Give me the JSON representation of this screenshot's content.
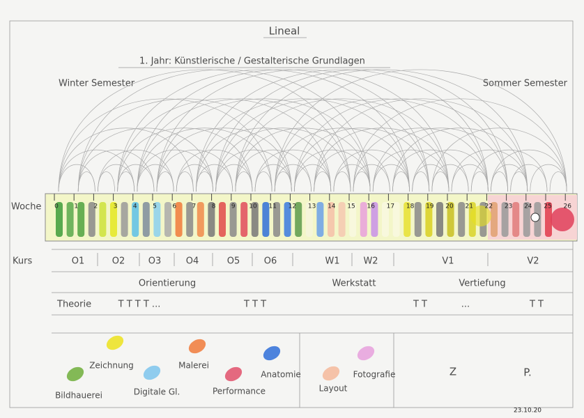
{
  "header": {
    "title": "Lineal",
    "subtitle": "1. Jahr: Künstlerische / Gestalterische Grundlagen",
    "left": "Winter Semester",
    "right": "Sommer Semester"
  },
  "ruler": {
    "label": "Woche",
    "weeks": [
      0,
      1,
      2,
      3,
      4,
      5,
      6,
      7,
      8,
      9,
      10,
      11,
      12,
      13,
      14,
      15,
      16,
      17,
      18,
      19,
      20,
      21,
      22,
      23,
      24,
      25,
      26
    ]
  },
  "courses": {
    "label": "Kurs",
    "items": [
      "O1",
      "O2",
      "O3",
      "O4",
      "O5",
      "O6",
      "W1",
      "W2",
      "V1",
      "V2"
    ]
  },
  "phases": [
    "Orientierung",
    "Werkstatt",
    "Vertiefung"
  ],
  "theory": {
    "label": "Theorie",
    "marks": [
      "T   T   T   T   ...",
      "T   T   T",
      "T   T",
      "...",
      "T   T"
    ]
  },
  "legend": [
    {
      "label": "Zeichnung",
      "color": "#ece21c"
    },
    {
      "label": "Malerei",
      "color": "#f07a3a"
    },
    {
      "label": "Anatomie",
      "color": "#2f6fd8"
    },
    {
      "label": "Fotografie",
      "color": "#e6a0dc"
    },
    {
      "label": "Bildhauerei",
      "color": "#6fae3a"
    },
    {
      "label": "Digitale Gl.",
      "color": "#7cc4ec"
    },
    {
      "label": "Performance",
      "color": "#e0506a"
    },
    {
      "label": "Layout",
      "color": "#f4b89a"
    }
  ],
  "extra": [
    "Z",
    "P."
  ],
  "date": "23.10.20"
}
